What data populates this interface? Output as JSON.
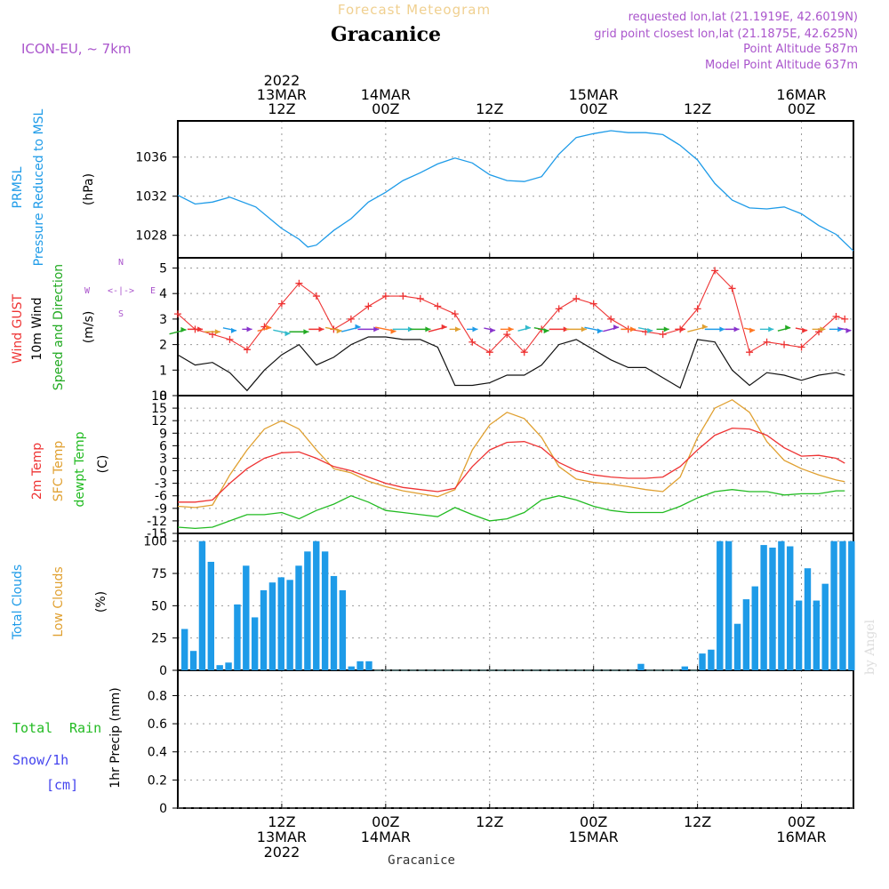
{
  "header": {
    "app_title": "Forecast Meteogram",
    "location": "Gracanice",
    "model": "ICON-EU, ~ 7km",
    "requested": "requested lon,lat (21.1919E, 42.6019N)",
    "grid_point": "grid point closest lon,lat (21.1875E, 42.625N)",
    "point_alt": "Point Altitude 587m",
    "model_alt": "Model Point Altitude 637m",
    "footer_location": "Gracanice",
    "watermark": "by Angel"
  },
  "colors": {
    "pressure": "#1e9be8",
    "gust": "#ee3333",
    "wind": "#111111",
    "dir": "#22aa22",
    "t2m": "#ee3333",
    "sfc": "#e0a030",
    "dew": "#22bb22",
    "clouds": "#1e9be8",
    "low": "#e0a030",
    "rain": "#22bb22",
    "snow": "#4444ee",
    "purple": "#aa55cc"
  },
  "time_axis": {
    "top_labels": [
      {
        "t": 12,
        "lines": [
          "2022",
          "13MAR",
          "12Z"
        ]
      },
      {
        "t": 24,
        "lines": [
          "14MAR",
          "00Z"
        ]
      },
      {
        "t": 36,
        "lines": [
          "12Z"
        ]
      },
      {
        "t": 48,
        "lines": [
          "15MAR",
          "00Z"
        ]
      },
      {
        "t": 60,
        "lines": [
          "12Z"
        ]
      },
      {
        "t": 72,
        "lines": [
          "16MAR",
          "00Z"
        ]
      }
    ],
    "bottom_labels": [
      {
        "t": 12,
        "lines": [
          "12Z",
          "13MAR",
          "2022"
        ]
      },
      {
        "t": 24,
        "lines": [
          "00Z",
          "14MAR"
        ]
      },
      {
        "t": 36,
        "lines": [
          "12Z"
        ]
      },
      {
        "t": 48,
        "lines": [
          "00Z",
          "15MAR"
        ]
      },
      {
        "t": 60,
        "lines": [
          "12Z"
        ]
      },
      {
        "t": 72,
        "lines": [
          "00Z",
          "16MAR"
        ]
      }
    ]
  },
  "panel_labels": {
    "pressure": [
      "PRMSL",
      "Pressure Reduced to MSL",
      "(hPa)"
    ],
    "wind": [
      "Wind GUST",
      "10m Wind",
      "Speed and Direction",
      "(m/s)"
    ],
    "compass": [
      "N",
      "S",
      "W",
      "E"
    ],
    "temp": [
      "2m Temp",
      "SFC Temp",
      "dewpt Temp",
      "(C)"
    ],
    "clouds": [
      "Total Clouds",
      "Low Clouds",
      "(%)"
    ],
    "precip": [
      "Total",
      "Rain",
      "Snow/1h",
      "[cm]",
      "1hr Precip (mm)"
    ]
  },
  "chart_data": [
    {
      "type": "line",
      "title": "PRMSL Pressure Reduced to MSL",
      "ylabel": "(hPa)",
      "ylim": [
        1025.7,
        1039.7
      ],
      "yticks": [
        1028,
        1032,
        1036
      ],
      "x": [
        0,
        2,
        4,
        6,
        9,
        12,
        14,
        15,
        16,
        18,
        20,
        22,
        24,
        26,
        28,
        30,
        32,
        34,
        36,
        38,
        40,
        42,
        44,
        46,
        48,
        50,
        52,
        54,
        56,
        58,
        60,
        62,
        64,
        66,
        68,
        70,
        72,
        74,
        76,
        78
      ],
      "series": [
        {
          "name": "PRMSL",
          "values": [
            1032.1,
            1031.2,
            1031.4,
            1031.9,
            1030.9,
            1028.7,
            1027.6,
            1026.8,
            1027.0,
            1028.5,
            1029.7,
            1031.4,
            1032.4,
            1033.6,
            1034.4,
            1035.3,
            1035.9,
            1035.4,
            1034.2,
            1033.6,
            1033.5,
            1034.0,
            1036.3,
            1038.0,
            1038.4,
            1038.7,
            1038.5,
            1038.5,
            1038.3,
            1037.2,
            1035.7,
            1033.3,
            1031.6,
            1030.8,
            1030.7,
            1030.9,
            1030.2,
            1029.0,
            1028.1,
            1026.4
          ]
        }
      ]
    },
    {
      "type": "line",
      "title": "Wind GUST / 10m Wind Speed and Direction",
      "ylabel": "(m/s)",
      "ylim": [
        0,
        5.4
      ],
      "yticks": [
        0,
        1,
        2,
        3,
        4,
        5
      ],
      "x": [
        0,
        2,
        4,
        6,
        8,
        10,
        12,
        14,
        16,
        18,
        20,
        22,
        24,
        26,
        28,
        30,
        32,
        34,
        36,
        38,
        40,
        42,
        44,
        46,
        48,
        50,
        52,
        54,
        56,
        58,
        60,
        62,
        64,
        66,
        68,
        70,
        72,
        74,
        76,
        77
      ],
      "series": [
        {
          "name": "Wind GUST",
          "values": [
            3.2,
            2.6,
            2.4,
            2.2,
            1.8,
            2.7,
            3.6,
            4.4,
            3.9,
            2.6,
            3.0,
            3.5,
            3.9,
            3.9,
            3.8,
            3.5,
            3.2,
            2.1,
            1.7,
            2.4,
            1.7,
            2.6,
            3.4,
            3.8,
            3.6,
            3.0,
            2.6,
            2.5,
            2.4,
            2.6,
            3.4,
            4.9,
            4.2,
            1.7,
            2.1,
            2.0,
            1.9,
            2.5,
            3.1,
            3.0
          ]
        },
        {
          "name": "10m Wind",
          "values": [
            1.6,
            1.2,
            1.3,
            0.9,
            0.2,
            1.0,
            1.6,
            2.0,
            1.2,
            1.5,
            2.0,
            2.3,
            2.3,
            2.2,
            2.2,
            1.9,
            0.4,
            0.4,
            0.5,
            0.8,
            0.8,
            1.2,
            2.0,
            2.2,
            1.8,
            1.4,
            1.1,
            1.1,
            0.7,
            0.3,
            2.2,
            2.1,
            1.0,
            0.4,
            0.9,
            0.8,
            0.6,
            0.8,
            0.9,
            0.8
          ]
        },
        {
          "name": "Direction",
          "values": [
            2.5,
            2.6,
            2.5,
            2.6,
            2.6,
            2.6,
            2.5,
            2.5,
            2.6,
            2.6,
            2.6,
            2.6,
            2.6,
            2.6,
            2.6,
            2.6,
            2.6,
            2.6,
            2.6,
            2.6,
            2.6,
            2.6,
            2.6,
            2.6,
            2.6,
            2.6,
            2.6,
            2.6,
            2.6,
            2.6,
            2.6,
            2.6,
            2.6,
            2.6,
            2.6,
            2.6,
            2.6,
            2.6,
            2.6,
            2.6
          ]
        }
      ]
    },
    {
      "type": "line",
      "title": "2m Temp / SFC Temp / dewpt Temp",
      "ylabel": "(C)",
      "ylim": [
        -15,
        18
      ],
      "yticks": [
        -15,
        -12,
        -9,
        -6,
        -3,
        0,
        3,
        6,
        9,
        12,
        15,
        18
      ],
      "x": [
        0,
        2,
        4,
        6,
        8,
        10,
        12,
        14,
        16,
        18,
        20,
        22,
        24,
        26,
        28,
        30,
        32,
        34,
        36,
        38,
        40,
        42,
        44,
        46,
        48,
        50,
        52,
        54,
        56,
        58,
        60,
        62,
        64,
        66,
        68,
        70,
        72,
        74,
        76,
        77
      ],
      "series": [
        {
          "name": "2m Temp",
          "values": [
            -7.5,
            -7.5,
            -7,
            -3,
            0.5,
            3,
            4.3,
            4.5,
            3,
            1,
            0,
            -1.5,
            -3,
            -4,
            -4.5,
            -5,
            -4.2,
            1,
            5,
            6.8,
            7,
            5.5,
            2,
            0,
            -1,
            -1.5,
            -1.8,
            -1.8,
            -1.5,
            1,
            5,
            8.5,
            10.2,
            10,
            8.5,
            5.5,
            3.5,
            3.7,
            3,
            1.8
          ]
        },
        {
          "name": "SFC Temp",
          "values": [
            -8.5,
            -8.8,
            -8.2,
            -1,
            5,
            10,
            12,
            10,
            5,
            0.5,
            -0.5,
            -2.5,
            -3.8,
            -4.8,
            -5.5,
            -6.2,
            -4.5,
            5,
            11,
            14,
            12.5,
            8,
            1,
            -2,
            -2.8,
            -3.2,
            -3.8,
            -4.5,
            -5,
            -1.5,
            8,
            15,
            17,
            14,
            7,
            2.5,
            0.5,
            -1,
            -2.2,
            -2.6
          ]
        },
        {
          "name": "dewpt Temp",
          "values": [
            -13.5,
            -13.8,
            -13.5,
            -12,
            -10.5,
            -10.5,
            -10,
            -11.5,
            -9.5,
            -8,
            -6,
            -7.5,
            -9.5,
            -10,
            -10.5,
            -11,
            -8.8,
            -10.5,
            -12,
            -11.5,
            -10,
            -7,
            -6,
            -7,
            -8.5,
            -9.5,
            -10,
            -10,
            -10,
            -8.5,
            -6.5,
            -5,
            -4.5,
            -5,
            -5,
            -5.8,
            -5.5,
            -5.5,
            -4.8,
            -4.8
          ]
        }
      ]
    },
    {
      "type": "bar",
      "title": "Total Clouds / Low Clouds",
      "ylabel": "(%)",
      "ylim": [
        0,
        106
      ],
      "yticks": [
        0,
        25,
        50,
        75,
        100
      ],
      "series": [
        {
          "name": "Total Clouds",
          "values": [
            32,
            15,
            100,
            84,
            4,
            6,
            51,
            81,
            41,
            62,
            68,
            72,
            70,
            81,
            92,
            100,
            92,
            73,
            62,
            3,
            7,
            7,
            0,
            0,
            0,
            0,
            0,
            0,
            0,
            0,
            0,
            0,
            0,
            0,
            0,
            0,
            0,
            0,
            0,
            0,
            0,
            0,
            0,
            0,
            0,
            0,
            0,
            0,
            0,
            0,
            0,
            0,
            5,
            0,
            0,
            0,
            0,
            3,
            0,
            13,
            16,
            100,
            100,
            36,
            55,
            65,
            97,
            95,
            100,
            96,
            54,
            79,
            54,
            67,
            100,
            100,
            100
          ]
        },
        {
          "name": "Low Clouds",
          "values": []
        }
      ]
    },
    {
      "type": "bar",
      "title": "Total Rain / Snow 1h",
      "ylabel": "1hr Precip (mm)",
      "ylim": [
        0,
        0.98
      ],
      "yticks": [
        0,
        0.2,
        0.4,
        0.6,
        0.8
      ],
      "series": [
        {
          "name": "Total Rain",
          "values": []
        },
        {
          "name": "Snow/1h",
          "values": []
        }
      ]
    }
  ]
}
